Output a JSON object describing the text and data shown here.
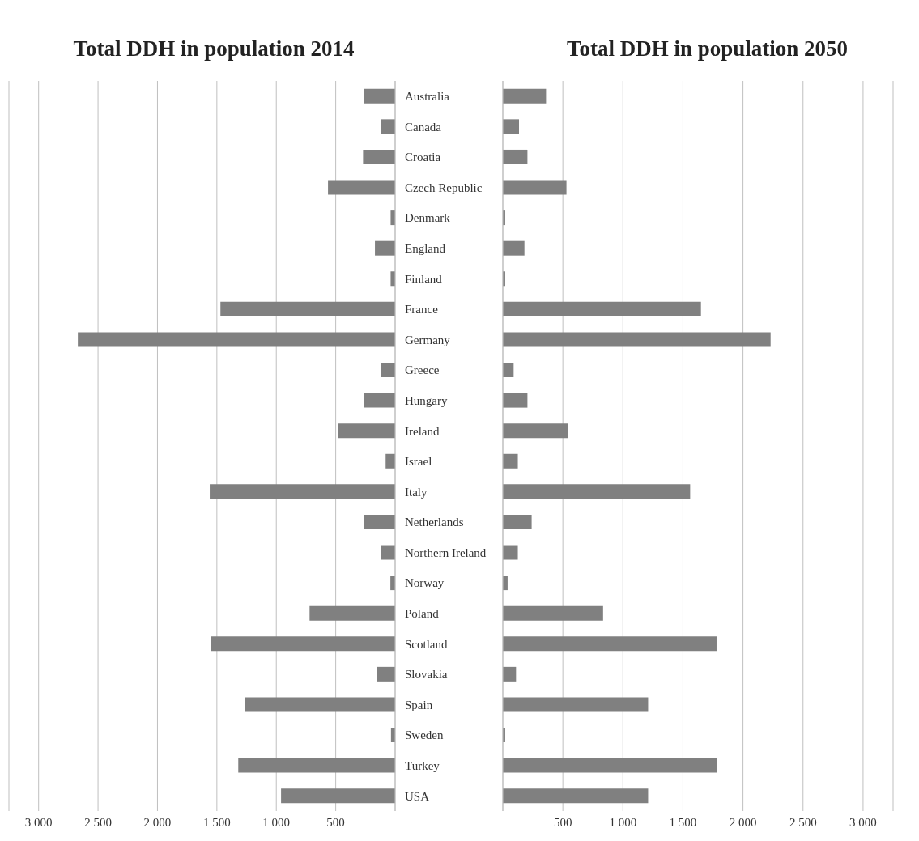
{
  "chart_data": [
    {
      "type": "bar",
      "orientation": "horizontal",
      "title": "Total DDH in population 2014",
      "categories": [
        "Australia",
        "Canada",
        "Croatia",
        "Czech Republic",
        "Denmark",
        "England",
        "Finland",
        "France",
        "Germany",
        "Greece",
        "Hungary",
        "Ireland",
        "Israel",
        "Italy",
        "Netherlands",
        "Northern Ireland",
        "Norway",
        "Poland",
        "Scotland",
        "Slovakia",
        "Spain",
        "Sweden",
        "Turkey",
        "USA"
      ],
      "values": [
        260,
        120,
        270,
        565,
        38,
        170,
        38,
        1470,
        2670,
        120,
        260,
        480,
        80,
        1560,
        260,
        120,
        40,
        720,
        1550,
        150,
        1265,
        35,
        1320,
        960
      ],
      "color": "#808080",
      "xlim": [
        3250,
        0
      ],
      "xticks": [
        {
          "value": 3000,
          "label": "3 000"
        },
        {
          "value": 2500,
          "label": "2 500"
        },
        {
          "value": 2000,
          "label": "2 000"
        },
        {
          "value": 1500,
          "label": "1 500"
        },
        {
          "value": 1000,
          "label": "1 000"
        },
        500
      ],
      "grid": "x"
    },
    {
      "type": "bar",
      "orientation": "horizontal",
      "title": "Total DDH in population 2050",
      "categories": [
        null,
        null,
        null,
        null,
        null,
        null,
        null,
        null,
        null,
        null,
        null,
        null,
        null,
        null,
        null,
        null,
        null,
        null,
        null,
        null,
        null,
        null,
        null,
        null
      ],
      "values": [
        360,
        135,
        205,
        530,
        20,
        180,
        20,
        1650,
        2230,
        90,
        205,
        545,
        125,
        1560,
        240,
        125,
        40,
        835,
        1780,
        110,
        1210,
        20,
        1785,
        1210
      ],
      "color": "#808080",
      "xlim": [
        0,
        3250
      ],
      "xticks": [
        500,
        {
          "value": 1000,
          "label": "1 000"
        },
        {
          "value": 1500,
          "label": "1 500"
        },
        {
          "value": 2000,
          "label": "2 000"
        },
        {
          "value": 2500,
          "label": "2 500"
        },
        {
          "value": 3000,
          "label": "3 000"
        }
      ],
      "grid": "x",
      "tick_labels": "x"
    }
  ]
}
